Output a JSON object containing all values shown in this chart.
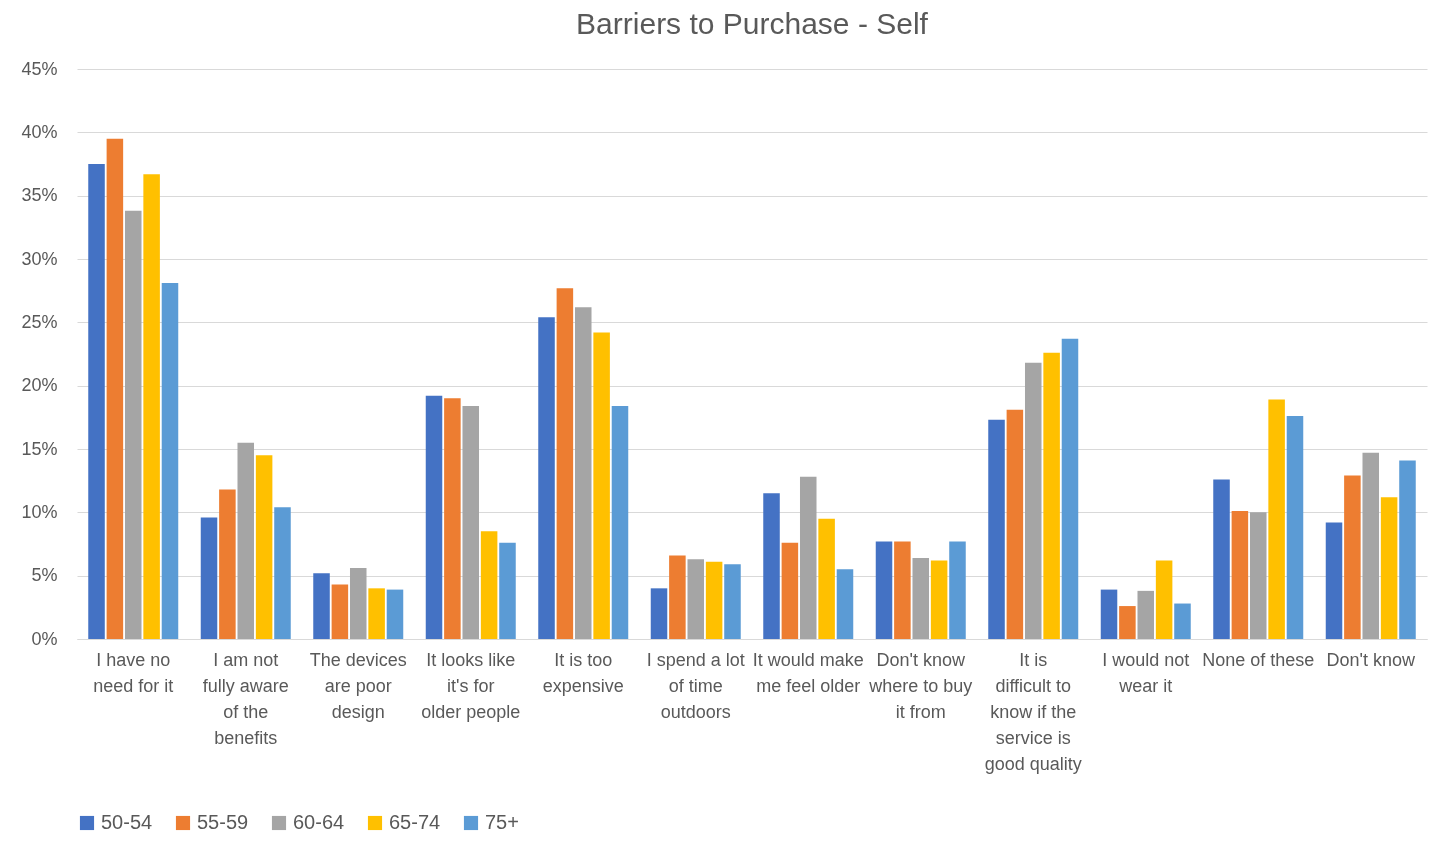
{
  "chart_data": {
    "type": "bar",
    "title": "Barriers to Purchase - Self",
    "categories": [
      "I have no need for it",
      "I am not fully aware of the benefits",
      "The devices are poor design",
      "It looks like it's for older people",
      "It is too expensive",
      "I spend a lot of time outdoors",
      "It would make me feel older",
      "Don't know where to buy it from",
      "It is difficult to know if the service is good quality",
      "I would not wear it",
      "None of these",
      "Don't know"
    ],
    "series": [
      {
        "name": "50-54",
        "color": "#4472c4",
        "values": [
          37.5,
          9.6,
          5.2,
          19.2,
          25.4,
          4.0,
          11.5,
          7.7,
          17.3,
          3.9,
          12.6,
          9.2
        ]
      },
      {
        "name": "55-59",
        "color": "#ed7d31",
        "values": [
          39.5,
          11.8,
          4.3,
          19.0,
          27.7,
          6.6,
          7.6,
          7.7,
          18.1,
          2.6,
          10.1,
          12.9
        ]
      },
      {
        "name": "60-64",
        "color": "#a5a5a5",
        "values": [
          33.8,
          15.5,
          5.6,
          18.4,
          26.2,
          6.3,
          12.8,
          6.4,
          21.8,
          3.8,
          10.0,
          14.7
        ]
      },
      {
        "name": "65-74",
        "color": "#ffc000",
        "values": [
          36.7,
          14.5,
          4.0,
          8.5,
          24.2,
          6.1,
          9.5,
          6.2,
          22.6,
          6.2,
          18.9,
          11.2
        ]
      },
      {
        "name": "75+",
        "color": "#5b9bd5",
        "values": [
          28.1,
          10.4,
          3.9,
          7.6,
          18.4,
          5.9,
          5.5,
          7.7,
          23.7,
          2.8,
          17.6,
          14.1
        ]
      }
    ],
    "ylim": [
      0,
      45
    ],
    "yticks": [
      {
        "value": 0,
        "label": "0%"
      },
      {
        "value": 5,
        "label": "5%"
      },
      {
        "value": 10,
        "label": "10%"
      },
      {
        "value": 15,
        "label": "15%"
      },
      {
        "value": 20,
        "label": "20%"
      },
      {
        "value": 25,
        "label": "25%"
      },
      {
        "value": 30,
        "label": "30%"
      },
      {
        "value": 35,
        "label": "35%"
      },
      {
        "value": 40,
        "label": "40%"
      },
      {
        "value": 45,
        "label": "45%"
      }
    ],
    "grid": "y",
    "legend": "bottom"
  }
}
